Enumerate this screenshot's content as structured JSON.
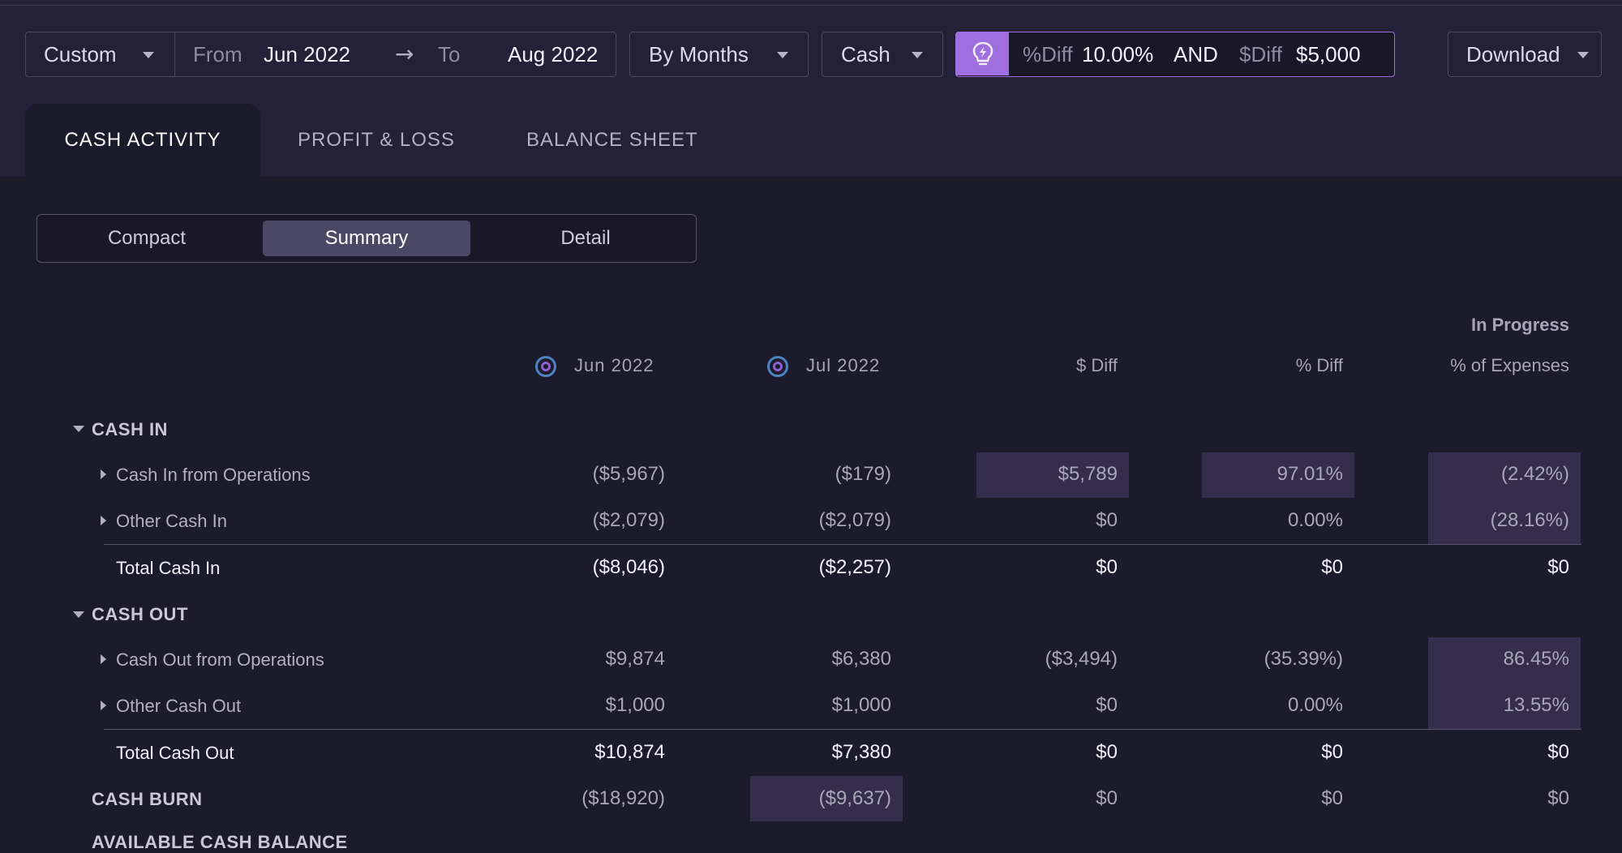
{
  "filters": {
    "range_type": "Custom",
    "from_label": "From",
    "from_value": "Jun 2022",
    "arrow": "→",
    "to_label": "To",
    "to_value": "Aug 2022",
    "group_by": "By Months",
    "basis": "Cash",
    "insight": {
      "pct_label": "%Diff",
      "pct_value": "10.00%",
      "join": "AND",
      "dollar_label": "$Diff",
      "dollar_value": "$5,000",
      "icon": "lightbulb-icon",
      "accent": "#9f6fe0"
    },
    "download_label": "Download"
  },
  "tabs": [
    {
      "label": "CASH ACTIVITY",
      "active": true
    },
    {
      "label": "PROFIT & LOSS",
      "active": false
    },
    {
      "label": "BALANCE SHEET",
      "active": false
    }
  ],
  "view_modes": [
    {
      "label": "Compact",
      "active": false
    },
    {
      "label": "Summary",
      "active": true
    },
    {
      "label": "Detail",
      "active": false
    }
  ],
  "table": {
    "status": "In Progress",
    "columns": [
      "Jun 2022",
      "Jul 2022",
      "$ Diff",
      "% Diff",
      "% of Expenses"
    ],
    "sections": [
      {
        "title": "CASH IN",
        "rows": [
          {
            "label": "Cash In from Operations",
            "values": [
              "($5,967)",
              "($179)",
              "$5,789",
              "97.01%",
              "(2.42%)"
            ]
          },
          {
            "label": "Other Cash In",
            "values": [
              "($2,079)",
              "($2,079)",
              "$0",
              "0.00%",
              "(28.16%)"
            ]
          }
        ],
        "total": {
          "label": "Total Cash In",
          "values": [
            "($8,046)",
            "($2,257)",
            "$0",
            "$0",
            "$0"
          ]
        }
      },
      {
        "title": "CASH OUT",
        "rows": [
          {
            "label": "Cash Out from Operations",
            "values": [
              "$9,874",
              "$6,380",
              "($3,494)",
              "(35.39%)",
              "86.45%"
            ]
          },
          {
            "label": "Other Cash Out",
            "values": [
              "$1,000",
              "$1,000",
              "$0",
              "0.00%",
              "13.55%"
            ]
          }
        ],
        "total": {
          "label": "Total Cash Out",
          "values": [
            "$10,874",
            "$7,380",
            "$0",
            "$0",
            "$0"
          ]
        }
      }
    ],
    "burn": {
      "label": "CASH BURN",
      "values": [
        "($18,920)",
        "($9,637)",
        "$0",
        "$0",
        "$0"
      ]
    },
    "cutoff_label": "AVAILABLE CASH BALANCE"
  }
}
